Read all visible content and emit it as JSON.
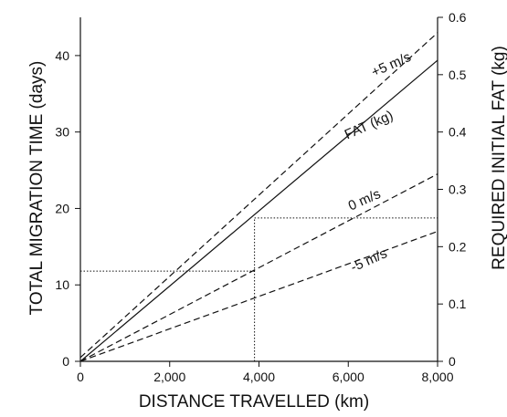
{
  "chart_data": {
    "type": "line",
    "xlabel": "DISTANCE TRAVELLED (km)",
    "ylabel": "TOTAL MIGRATION TIME (days)",
    "y2label": "REQUIRED INITIAL FAT (kg)",
    "xlim": [
      0,
      8000
    ],
    "ylim": [
      0,
      45
    ],
    "y2lim": [
      0,
      0.6
    ],
    "x_ticks": [
      0,
      2000,
      4000,
      6000,
      8000
    ],
    "x_tick_labels": [
      "0",
      "2,000",
      "4,000",
      "6,000",
      "8,000"
    ],
    "y_ticks": [
      0,
      10,
      20,
      30,
      40
    ],
    "y_tick_labels": [
      "0",
      "10",
      "20",
      "30",
      "40"
    ],
    "y2_ticks": [
      0,
      0.1,
      0.2,
      0.3,
      0.4,
      0.5,
      0.6
    ],
    "y2_tick_labels": [
      "0",
      "0.1",
      "0.2",
      "0.3",
      "0.4",
      "0.5",
      "0.6"
    ],
    "grid": false,
    "series": [
      {
        "name": "+5 m/s",
        "style": "dashed",
        "axis": "y",
        "x": [
          0,
          8000
        ],
        "y": [
          0.5,
          43
        ]
      },
      {
        "name": "FAT (kg)",
        "style": "solid",
        "axis": "y2",
        "x": [
          0,
          8000
        ],
        "y": [
          0,
          0.525
        ]
      },
      {
        "name": "0 m/s",
        "style": "dashed",
        "axis": "y",
        "x": [
          0,
          8000
        ],
        "y": [
          0,
          24.5
        ]
      },
      {
        "name": "-5 m/s",
        "style": "dashed",
        "axis": "y",
        "x": [
          0,
          8000
        ],
        "y": [
          0,
          17
        ]
      }
    ],
    "reference_lines": [
      {
        "type": "horizontal",
        "axis": "y",
        "y": 11.8,
        "x_from": 0,
        "x_to": 3900
      },
      {
        "type": "vertical",
        "x": 3900,
        "y_from": 0,
        "y_to": 18.8
      },
      {
        "type": "horizontal",
        "axis": "y2",
        "y": 0.25,
        "x_from": 3900,
        "x_to": 8000
      }
    ],
    "annotations": [
      {
        "text": "+5 m/s",
        "x": 7000,
        "y": 38.3
      },
      {
        "text": "FAT (kg)",
        "x": 6500,
        "y": 30.4
      },
      {
        "text": "0 m/s",
        "x": 6400,
        "y": 20.6
      },
      {
        "text": "-5 m/s",
        "x": 6500,
        "y": 12.7
      }
    ],
    "colors": {
      "line": "#111111",
      "background": "#ffffff"
    }
  }
}
